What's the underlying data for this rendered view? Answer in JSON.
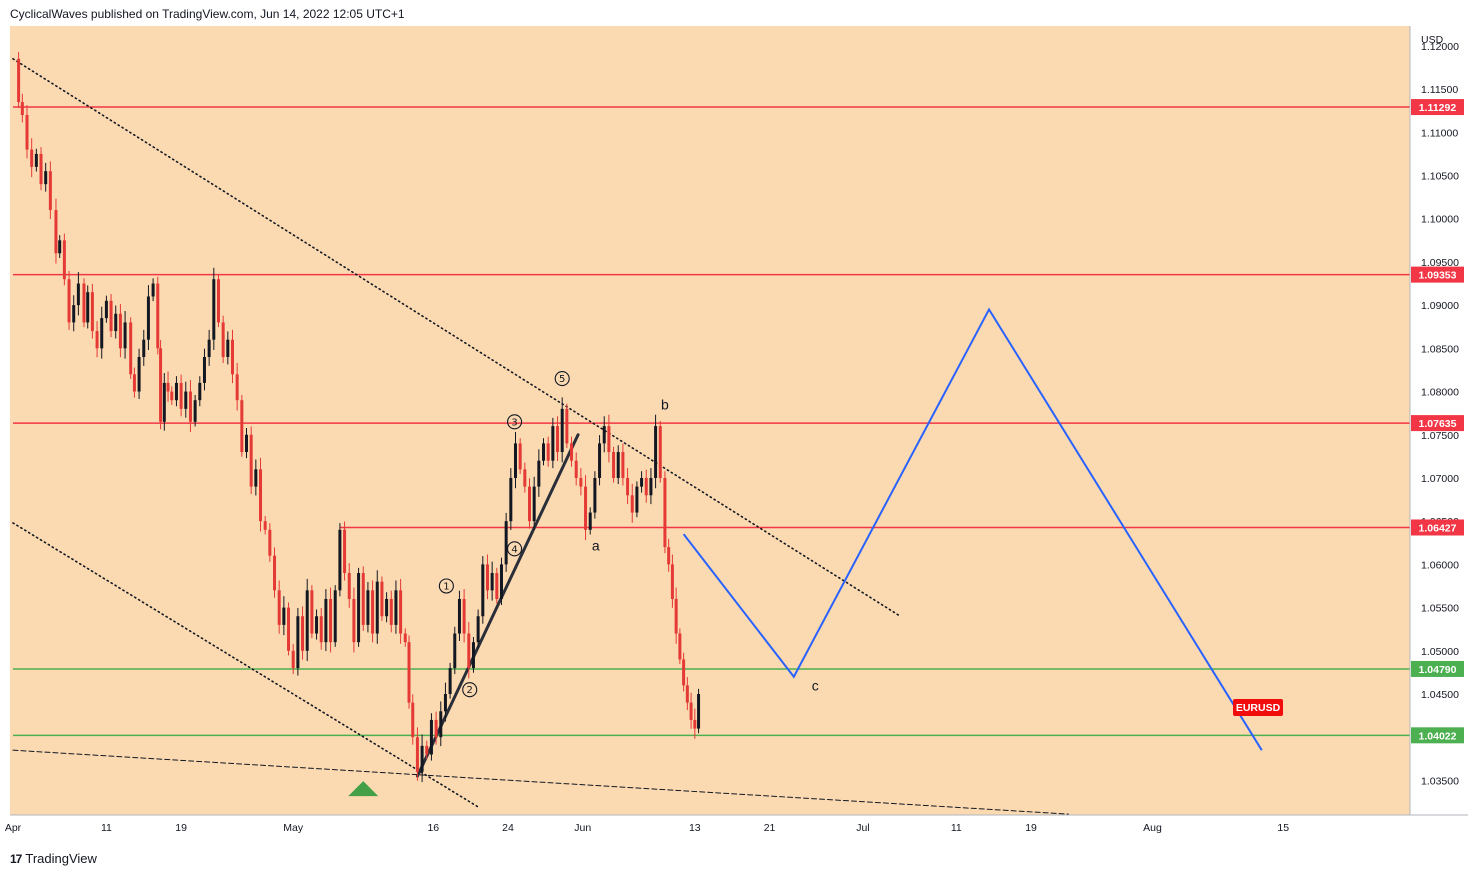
{
  "header": {
    "publisher_text": "CyclicalWaves published on TradingView.com, Jun 14, 2022 12:05 UTC+1"
  },
  "footer": {
    "logo_glyph": "17",
    "brand": "TradingView"
  },
  "colors": {
    "plot_bg": "#fbdab2",
    "resistance": "#f23645",
    "support": "#4caf50",
    "projection": "#2962ff",
    "candle": "#131722",
    "candle_down": "#e53935",
    "symbol_tag": "#f20d0d",
    "triangle": "#43a047"
  },
  "chart_data": {
    "type": "candlestick",
    "symbol": "EURUSD",
    "currency": "USD",
    "ylim": [
      1.031,
      1.1223
    ],
    "y_ticks": [
      "1.12000",
      "1.11500",
      "1.11000",
      "1.10500",
      "1.10000",
      "1.09500",
      "1.09000",
      "1.08500",
      "1.08000",
      "1.07500",
      "1.07000",
      "1.06500",
      "1.06000",
      "1.05500",
      "1.05000",
      "1.04500",
      "1.04000",
      "1.03500"
    ],
    "x_ticks": [
      {
        "label": "Apr",
        "day": 0
      },
      {
        "label": "11",
        "day": 10
      },
      {
        "label": "19",
        "day": 18
      },
      {
        "label": "May",
        "day": 30
      },
      {
        "label": "16",
        "day": 45
      },
      {
        "label": "24",
        "day": 53
      },
      {
        "label": "Jun",
        "day": 61
      },
      {
        "label": "13",
        "day": 73
      },
      {
        "label": "21",
        "day": 81
      },
      {
        "label": "Jul",
        "day": 91
      },
      {
        "label": "11",
        "day": 101
      },
      {
        "label": "19",
        "day": 109
      },
      {
        "label": "Aug",
        "day": 122
      },
      {
        "label": "15",
        "day": 136
      }
    ],
    "horizontal_levels": [
      {
        "price": 1.11292,
        "label": "1.11292",
        "kind": "resistance",
        "start_day": 0
      },
      {
        "price": 1.09353,
        "label": "1.09353",
        "kind": "resistance",
        "start_day": 0
      },
      {
        "price": 1.07635,
        "label": "1.07635",
        "kind": "resistance",
        "start_day": 0
      },
      {
        "price": 1.06427,
        "label": "1.06427",
        "kind": "resistance",
        "start_day": 35
      },
      {
        "price": 1.0479,
        "label": "1.04790",
        "kind": "support",
        "start_day": 0
      },
      {
        "price": 1.04022,
        "label": "1.04022",
        "kind": "support",
        "start_day": 0
      }
    ],
    "price_path": [
      [
        0,
        1.1185
      ],
      [
        0.6,
        1.1135
      ],
      [
        1,
        1.112
      ],
      [
        1.5,
        1.108
      ],
      [
        2,
        1.106
      ],
      [
        2.5,
        1.1075
      ],
      [
        3,
        1.104
      ],
      [
        3.5,
        1.1055
      ],
      [
        4,
        1.101
      ],
      [
        4.6,
        1.096
      ],
      [
        5,
        1.0975
      ],
      [
        5.5,
        1.093
      ],
      [
        6,
        1.088
      ],
      [
        6.5,
        1.09
      ],
      [
        7,
        1.0925
      ],
      [
        7.6,
        1.088
      ],
      [
        8,
        1.0915
      ],
      [
        8.5,
        1.087
      ],
      [
        9,
        1.085
      ],
      [
        9.5,
        1.0885
      ],
      [
        10,
        1.0905
      ],
      [
        10.5,
        1.087
      ],
      [
        11,
        1.089
      ],
      [
        11.5,
        1.085
      ],
      [
        12,
        1.088
      ],
      [
        12.6,
        1.082
      ],
      [
        13,
        1.08
      ],
      [
        13.5,
        1.084
      ],
      [
        14,
        1.086
      ],
      [
        14.5,
        1.091
      ],
      [
        15,
        1.0925
      ],
      [
        15.5,
        1.085
      ],
      [
        15.8,
        1.0765
      ],
      [
        16.2,
        1.081
      ],
      [
        17,
        1.079
      ],
      [
        17.5,
        1.081
      ],
      [
        18,
        1.078
      ],
      [
        18.5,
        1.08
      ],
      [
        19,
        1.0765
      ],
      [
        19.5,
        1.079
      ],
      [
        20,
        1.081
      ],
      [
        20.5,
        1.084
      ],
      [
        21,
        1.086
      ],
      [
        21.5,
        1.093
      ],
      [
        22,
        1.088
      ],
      [
        22.5,
        1.084
      ],
      [
        23,
        1.086
      ],
      [
        23.5,
        1.082
      ],
      [
        24,
        1.079
      ],
      [
        24.5,
        1.073
      ],
      [
        25,
        1.075
      ],
      [
        25.5,
        1.069
      ],
      [
        26,
        1.071
      ],
      [
        26.5,
        1.065
      ],
      [
        27,
        1.064
      ],
      [
        27.5,
        1.061
      ],
      [
        28,
        1.057
      ],
      [
        28.5,
        1.053
      ],
      [
        29,
        1.055
      ],
      [
        29.5,
        1.05
      ],
      [
        30,
        1.048
      ],
      [
        30.5,
        1.054
      ],
      [
        31,
        1.05
      ],
      [
        31.5,
        1.057
      ],
      [
        32,
        1.052
      ],
      [
        32.5,
        1.054
      ],
      [
        33,
        1.051
      ],
      [
        33.5,
        1.056
      ],
      [
        34,
        1.051
      ],
      [
        34.5,
        1.057
      ],
      [
        35,
        1.064
      ],
      [
        35.5,
        1.059
      ],
      [
        36,
        1.056
      ],
      [
        36.5,
        1.051
      ],
      [
        37,
        1.059
      ],
      [
        37.5,
        1.053
      ],
      [
        38,
        1.057
      ],
      [
        38.5,
        1.052
      ],
      [
        39,
        1.058
      ],
      [
        39.5,
        1.054
      ],
      [
        40,
        1.056
      ],
      [
        40.5,
        1.053
      ],
      [
        41,
        1.057
      ],
      [
        41.5,
        1.052
      ],
      [
        42,
        1.051
      ],
      [
        42.4,
        1.044
      ],
      [
        42.8,
        1.04
      ],
      [
        43.3,
        1.036
      ],
      [
        43.8,
        1.039
      ],
      [
        44.3,
        1.038
      ],
      [
        44.8,
        1.042
      ],
      [
        45.3,
        1.04
      ],
      [
        45.8,
        1.043
      ],
      [
        46.3,
        1.045
      ],
      [
        46.8,
        1.048
      ],
      [
        47.3,
        1.052
      ],
      [
        47.8,
        1.056
      ],
      [
        48.3,
        1.052
      ],
      [
        48.8,
        1.048
      ],
      [
        49.3,
        1.051
      ],
      [
        49.8,
        1.054
      ],
      [
        50.3,
        1.06
      ],
      [
        50.8,
        1.057
      ],
      [
        51.3,
        1.059
      ],
      [
        51.8,
        1.056
      ],
      [
        52.3,
        1.06
      ],
      [
        52.8,
        1.065
      ],
      [
        53.3,
        1.07
      ],
      [
        53.8,
        1.074
      ],
      [
        54.3,
        1.071
      ],
      [
        54.8,
        1.069
      ],
      [
        55.3,
        1.065
      ],
      [
        55.8,
        1.069
      ],
      [
        56.3,
        1.072
      ],
      [
        56.8,
        1.074
      ],
      [
        57.3,
        1.072
      ],
      [
        57.8,
        1.076
      ],
      [
        58.3,
        1.073
      ],
      [
        58.8,
        1.078
      ],
      [
        59.3,
        1.074
      ],
      [
        59.8,
        1.072
      ],
      [
        60.3,
        1.07
      ],
      [
        60.8,
        1.069
      ],
      [
        61.3,
        1.064
      ],
      [
        61.8,
        1.066
      ],
      [
        62.3,
        1.07
      ],
      [
        62.8,
        1.074
      ],
      [
        63.3,
        1.076
      ],
      [
        63.8,
        1.073
      ],
      [
        64.3,
        1.07
      ],
      [
        64.8,
        1.073
      ],
      [
        65.3,
        1.07
      ],
      [
        65.8,
        1.068
      ],
      [
        66.3,
        1.066
      ],
      [
        66.8,
        1.069
      ],
      [
        67.3,
        1.07
      ],
      [
        67.8,
        1.068
      ],
      [
        68.3,
        1.07
      ],
      [
        68.8,
        1.076
      ],
      [
        69.3,
        1.07
      ],
      [
        69.8,
        1.062
      ],
      [
        70.2,
        1.06
      ],
      [
        70.6,
        1.056
      ],
      [
        71.0,
        1.052
      ],
      [
        71.4,
        1.049
      ],
      [
        71.8,
        1.046
      ],
      [
        72.2,
        1.044
      ],
      [
        72.6,
        1.042
      ],
      [
        73.0,
        1.041
      ],
      [
        73.4,
        1.045
      ]
    ],
    "drawings": {
      "channel_upper": {
        "from": [
          0,
          1.1185
        ],
        "to": [
          95,
          1.054
        ],
        "style": "dotted"
      },
      "channel_lower": {
        "from": [
          0,
          1.0648
        ],
        "to": [
          50,
          1.0318
        ],
        "style": "dotted"
      },
      "base_line": {
        "from": [
          0,
          1.0385
        ],
        "to": [
          113,
          1.0311
        ],
        "style": "dashed"
      },
      "impulse_line": {
        "from": [
          43.3,
          1.0355
        ],
        "to": [
          60.5,
          1.075
        ],
        "style": "solid"
      },
      "projection_path": [
        [
          71.8,
          1.0635
        ],
        [
          83.6,
          1.047
        ],
        [
          104.5,
          1.0895
        ],
        [
          133.7,
          1.0385
        ]
      ]
    },
    "wave_labels": [
      {
        "text": "1",
        "style": "circled",
        "day": 46.4,
        "price": 1.0575
      },
      {
        "text": "2",
        "style": "circled",
        "day": 48.9,
        "price": 1.0455
      },
      {
        "text": "3",
        "style": "circled",
        "day": 53.7,
        "price": 1.0765
      },
      {
        "text": "4",
        "style": "circled",
        "day": 53.7,
        "price": 1.0618
      },
      {
        "text": "5",
        "style": "circled",
        "day": 58.8,
        "price": 1.0815
      },
      {
        "text": "a",
        "style": "letter",
        "day": 62.4,
        "price": 1.0622
      },
      {
        "text": "b",
        "style": "letter",
        "day": 69.8,
        "price": 1.0785
      },
      {
        "text": "c",
        "style": "letter",
        "day": 85.9,
        "price": 1.046
      }
    ],
    "marker_triangle": {
      "day": 37.5,
      "price": 1.034
    },
    "symbol_tag": {
      "text": "EURUSD",
      "price": 1.0435,
      "day": 133.3
    }
  }
}
